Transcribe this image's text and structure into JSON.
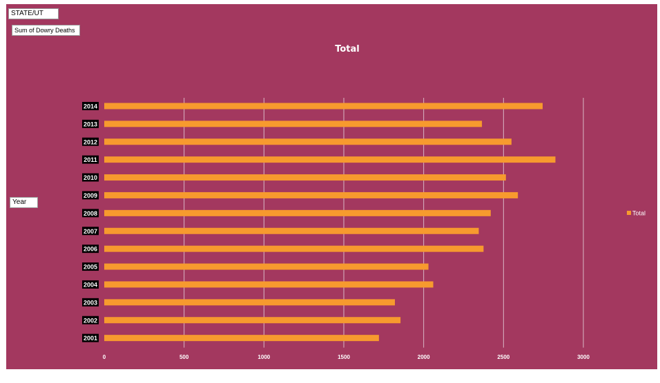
{
  "pivot_fields": {
    "filter": "STATE/UT",
    "values": "Sum of Dowry Deaths",
    "axis": "Year"
  },
  "colors": {
    "background": "#a3385f",
    "bar": "#f79a2e",
    "text": "#ffffff",
    "gridline": "#d9b8c6"
  },
  "chart_data": {
    "type": "bar",
    "orientation": "horizontal",
    "title": "Total",
    "xlabel": "",
    "ylabel": "",
    "categories": [
      "2001",
      "2002",
      "2003",
      "2004",
      "2005",
      "2006",
      "2007",
      "2008",
      "2009",
      "2010",
      "2011",
      "2012",
      "2013",
      "2014"
    ],
    "series": [
      {
        "name": "Total",
        "values": [
          1720,
          1855,
          1820,
          2060,
          2030,
          2375,
          2345,
          2420,
          2590,
          2515,
          2825,
          2550,
          2365,
          2745
        ]
      }
    ],
    "xlim": [
      0,
      3000
    ],
    "xticks": [
      "0",
      "500",
      "1000",
      "1500",
      "2000",
      "2500",
      "3000"
    ],
    "grid": true,
    "legend": "right"
  }
}
